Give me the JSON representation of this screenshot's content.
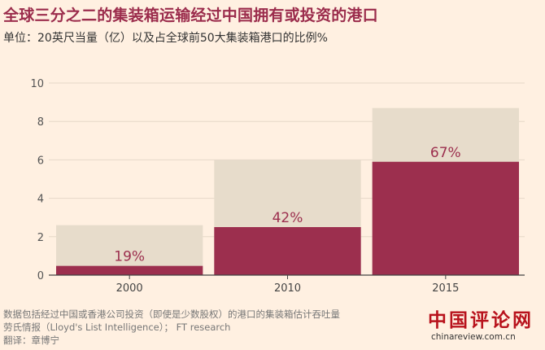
{
  "header": {
    "title": "全球三分之二的集装箱运输经过中国拥有或投资的港口",
    "subtitle": "单位：20英尺当量（亿）以及占全球前50大集装箱港口的比例%"
  },
  "chart_data": {
    "type": "bar",
    "categories": [
      "2000",
      "2010",
      "2015"
    ],
    "series": [
      {
        "name": "",
        "values": [
          2.6,
          6.0,
          8.7
        ],
        "color": "#e7dccb"
      },
      {
        "name": "",
        "values": [
          0.48,
          2.5,
          5.9
        ],
        "color": "#9c2f4e"
      }
    ],
    "data_labels": [
      "19%",
      "42%",
      "67%"
    ],
    "ylim": [
      0,
      10
    ],
    "yticks": [
      0,
      2,
      4,
      6,
      8,
      10
    ],
    "grid": true,
    "xlabel": "",
    "ylabel": ""
  },
  "footer": {
    "line1": "数据包括经过中国或香港公司投资（即使是少数股权）的港口的集装箱估计吞吐量",
    "line2": "劳氏情报（Lloyd's List Intelligence）； FT research",
    "line3": "翻译：章博宁"
  },
  "logo": {
    "main": "中国评论网",
    "url": "chinareview.com.cn"
  },
  "colors": {
    "background": "#fff0e1",
    "title": "#9b2c4c",
    "bar_total": "#e7dccb",
    "bar_share": "#9c2f4e",
    "grid": "#e6d8c8"
  }
}
